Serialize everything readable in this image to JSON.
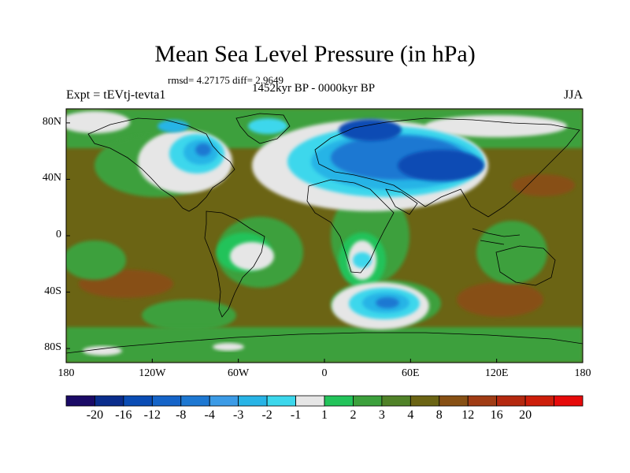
{
  "title": "Mean Sea Level Pressure (in hPa)",
  "stats": "rmsd= 4.27175 diff= 2.9649",
  "period": "1452kyr BP - 0000kyr BP",
  "experiment": "Expt = tEVtj-tevta1",
  "season": "JJA",
  "lat_ticks": [
    "80N",
    "40N",
    "0",
    "40S",
    "80S"
  ],
  "lon_ticks": [
    "180",
    "120W",
    "60W",
    "0",
    "60E",
    "120E",
    "180"
  ],
  "colorbar": {
    "colors": [
      "#1a0a66",
      "#0a2d8c",
      "#0a4cb4",
      "#1564c8",
      "#1e78d2",
      "#3c9be6",
      "#28b4e6",
      "#3cd7ec",
      "#e6e6e6",
      "#23c35a",
      "#3ca03c",
      "#508228",
      "#6b6414",
      "#875014",
      "#a03c14",
      "#b4280f",
      "#cd1e0a",
      "#e60a0a"
    ],
    "labels": [
      "-20",
      "-16",
      "-12",
      "-8",
      "-4",
      "-3",
      "-2",
      "-1",
      "1",
      "2",
      "3",
      "4",
      "8",
      "12",
      "16",
      "20"
    ]
  },
  "map_fill": {
    "background": "#6b6414",
    "green": "#3ca03c",
    "light_green": "#23c35a",
    "white": "#e6e6e6",
    "cyan": "#3cd7ec",
    "light_blue": "#28b4e6",
    "blue": "#1e78d2",
    "dark_blue": "#0a4cb4",
    "brown": "#875014"
  }
}
